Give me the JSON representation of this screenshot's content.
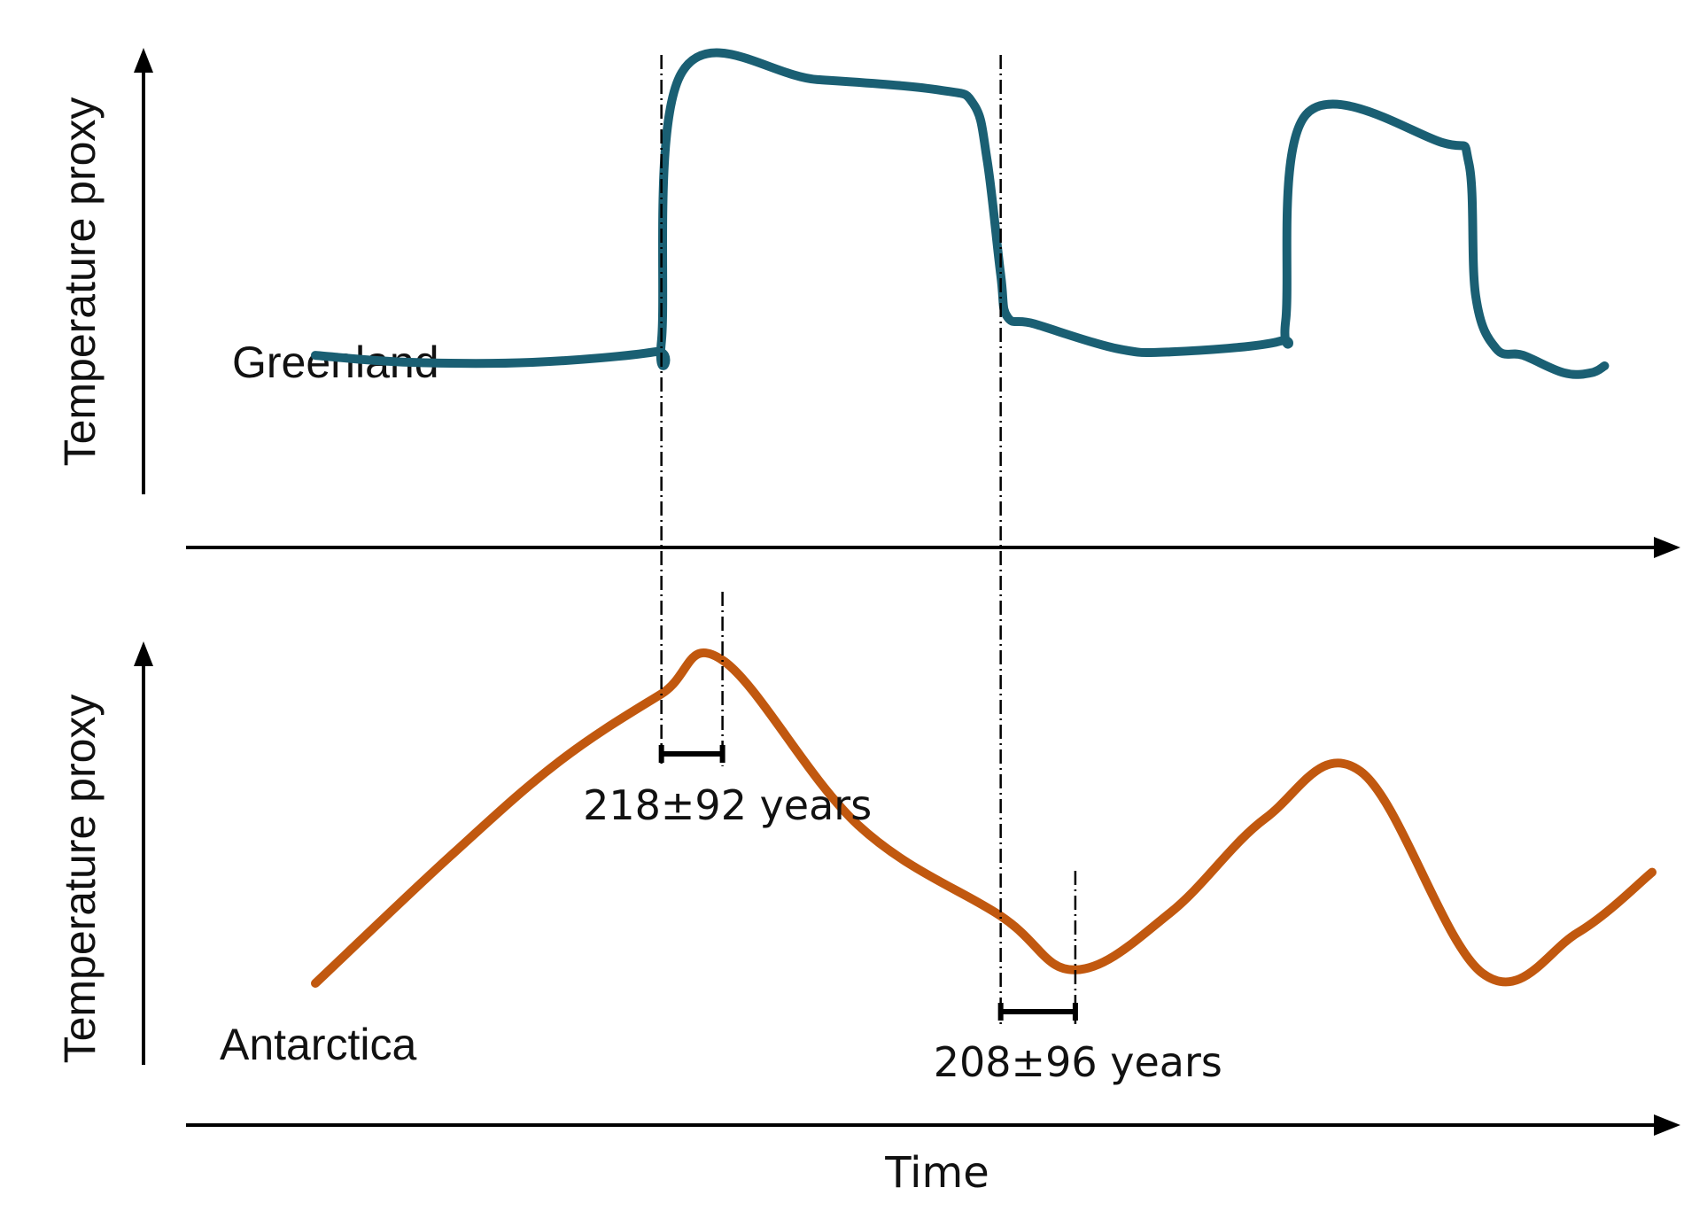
{
  "chart_data": {
    "type": "line",
    "xlabel": "Time",
    "panels": [
      {
        "name": "Greenland",
        "ylabel": "Temperature proxy",
        "color": "#1a5f73",
        "xlim": [
          0,
          100
        ],
        "ylim": [
          0,
          100
        ],
        "x": [
          0,
          7,
          16,
          25,
          25.5,
          27,
          37,
          46,
          48.5,
          49.5,
          50.5,
          51,
          53,
          59,
          63,
          71,
          71.5,
          73,
          83,
          85,
          85.5,
          87,
          89,
          92,
          94,
          95
        ],
        "y": [
          19,
          17,
          17,
          20,
          23,
          100,
          98,
          95,
          91,
          75,
          42,
          30,
          28,
          21,
          20,
          23,
          29,
          88,
          80,
          74,
          36,
          21,
          19,
          14,
          14,
          16
        ]
      },
      {
        "name": "Antarctica",
        "ylabel": "Temperature proxy",
        "color": "#c1580f",
        "xlim": [
          0,
          100
        ],
        "ylim": [
          0,
          100
        ],
        "x": [
          0,
          10,
          18,
          25.5,
          30,
          40,
          50.5,
          56,
          63,
          70,
          77,
          86,
          93,
          98.5
        ],
        "y": [
          0,
          38,
          66,
          86,
          96,
          47,
          20,
          4,
          21,
          49,
          63,
          3,
          15,
          33
        ]
      }
    ],
    "annotations": [
      {
        "text": "218±92 years",
        "panel": "Antarctica",
        "from_x": 25.5,
        "to_x": 30
      },
      {
        "text": "208±96 years",
        "panel": "Antarctica",
        "from_x": 50.5,
        "to_x": 56
      }
    ]
  }
}
